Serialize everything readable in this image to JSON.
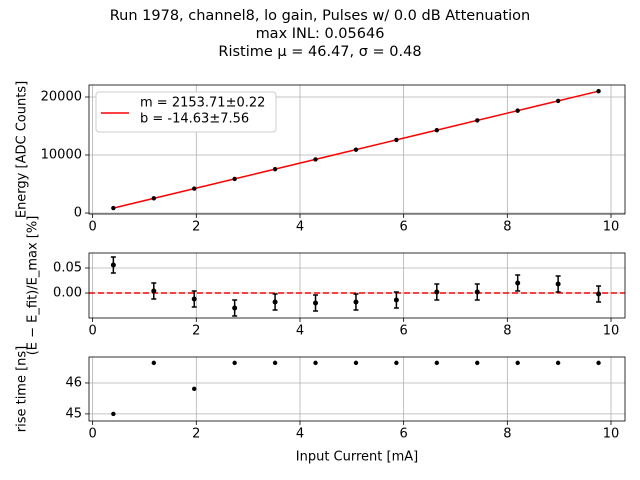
{
  "chart_data": [
    {
      "type": "scatter",
      "title": [
        "Run 1978, channel8, lo gain, Pulses w/ 0.0 dB Attenuation",
        "max INL: 0.05646",
        "Ristime μ = 46.47, σ = 0.48"
      ],
      "y_label": "Energy [ADC Counts]",
      "x": [
        0.4,
        1.18,
        1.96,
        2.74,
        3.52,
        4.3,
        5.08,
        5.86,
        6.64,
        7.42,
        8.2,
        8.98,
        9.76
      ],
      "series": [
        {
          "name": [
            "m = 2153.71±0.22",
            "b = -14.63±7.56"
          ],
          "color": "#ff0000",
          "kind": "line",
          "values": [
            847,
            2527,
            4207,
            5886,
            7566,
            9246,
            10926,
            12606,
            14286,
            15966,
            17646,
            19326,
            21006
          ]
        },
        {
          "color": "#000000",
          "kind": "points",
          "values": [
            859,
            2528,
            4204,
            5880,
            7562,
            9242,
            10922,
            12603,
            14286,
            15966,
            17650,
            19330,
            21006
          ]
        }
      ],
      "legend": "upper left",
      "xlim": [
        -0.07,
        10.27
      ],
      "xticks": [
        0,
        2,
        4,
        6,
        8,
        10
      ],
      "ylim": [
        -172,
        22070
      ],
      "yticks": [
        0,
        10000,
        20000
      ],
      "grid": true
    },
    {
      "type": "errorbar",
      "y_label": "(E − E_fit)/E_max [%]",
      "x": [
        0.4,
        1.18,
        1.96,
        2.74,
        3.52,
        4.3,
        5.08,
        5.86,
        6.64,
        7.42,
        8.2,
        8.98,
        9.76
      ],
      "series": [
        {
          "color": "#000000",
          "values": [
            0.056,
            0.004,
            -0.012,
            -0.03,
            -0.018,
            -0.02,
            -0.018,
            -0.014,
            0.002,
            0.002,
            0.02,
            0.018,
            -0.002
          ],
          "errors": [
            0.016,
            0.016,
            0.016,
            0.016,
            0.016,
            0.016,
            0.016,
            0.016,
            0.016,
            0.016,
            0.016,
            0.016,
            0.016
          ]
        }
      ],
      "hline": 0,
      "hline_color": "#ff0000",
      "xlim": [
        -0.07,
        10.27
      ],
      "xticks": [
        0,
        2,
        4,
        6,
        8,
        10
      ],
      "ylim": [
        -0.05,
        0.08
      ],
      "yticks": [
        {
          "value": 0.05,
          "label": "0.05"
        },
        {
          "value": 0,
          "label": "0.00"
        }
      ],
      "grid": true
    },
    {
      "type": "scatter",
      "y_label": "rise time [ns]",
      "x_label": "Input Current [mA]",
      "x": [
        0.4,
        1.18,
        1.96,
        2.74,
        3.52,
        4.3,
        5.08,
        5.86,
        6.64,
        7.42,
        8.2,
        8.98,
        9.76
      ],
      "series": [
        {
          "color": "#000000",
          "kind": "points",
          "values": [
            45.0,
            46.65,
            45.81,
            46.65,
            46.65,
            46.65,
            46.65,
            46.65,
            46.65,
            46.65,
            46.65,
            46.65,
            46.65
          ]
        }
      ],
      "xlim": [
        -0.07,
        10.27
      ],
      "xticks": [
        0,
        2,
        4,
        6,
        8,
        10
      ],
      "ylim": [
        44.77,
        46.84
      ],
      "yticks": [
        45,
        46
      ],
      "grid": true
    }
  ]
}
